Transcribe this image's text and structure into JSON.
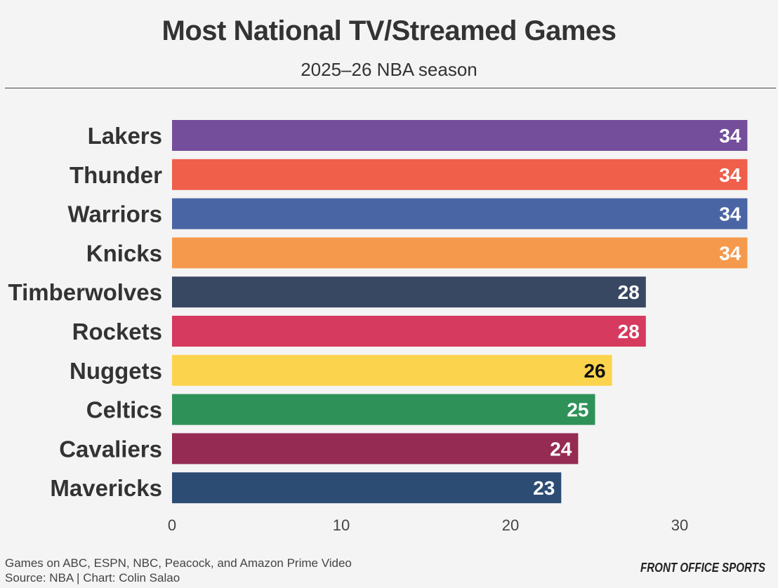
{
  "title": "Most National TV/Streamed Games",
  "subtitle": "2025–26 NBA season",
  "footer": {
    "line1": "Games on ABC, ESPN, NBC, Peacock, and Amazon Prime Video",
    "line2": "Source: NBA | Chart: Colin Salao"
  },
  "logo_text": "FRONT OFFICE SPORTS",
  "chart_data": {
    "type": "bar",
    "orientation": "horizontal",
    "title": "Most National TV/Streamed Games",
    "subtitle": "2025–26 NBA season",
    "xlabel": "",
    "ylabel": "",
    "xlim": [
      0,
      34
    ],
    "xticks": [
      0,
      10,
      20,
      30
    ],
    "grid": false,
    "legend": "none",
    "categories": [
      "Lakers",
      "Thunder",
      "Warriors",
      "Knicks",
      "Timberwolves",
      "Rockets",
      "Nuggets",
      "Celtics",
      "Cavaliers",
      "Mavericks"
    ],
    "values": [
      34,
      34,
      34,
      34,
      28,
      28,
      26,
      25,
      24,
      23
    ],
    "colors": [
      "#744e9b",
      "#ef5f4a",
      "#4a65a3",
      "#f59a4d",
      "#384862",
      "#d63a5e",
      "#fcd34c",
      "#2e9258",
      "#952b52",
      "#2d4c74"
    ],
    "label_colors": [
      "#ffffff",
      "#ffffff",
      "#ffffff",
      "#ffffff",
      "#ffffff",
      "#ffffff",
      "#111111",
      "#ffffff",
      "#ffffff",
      "#ffffff"
    ]
  }
}
